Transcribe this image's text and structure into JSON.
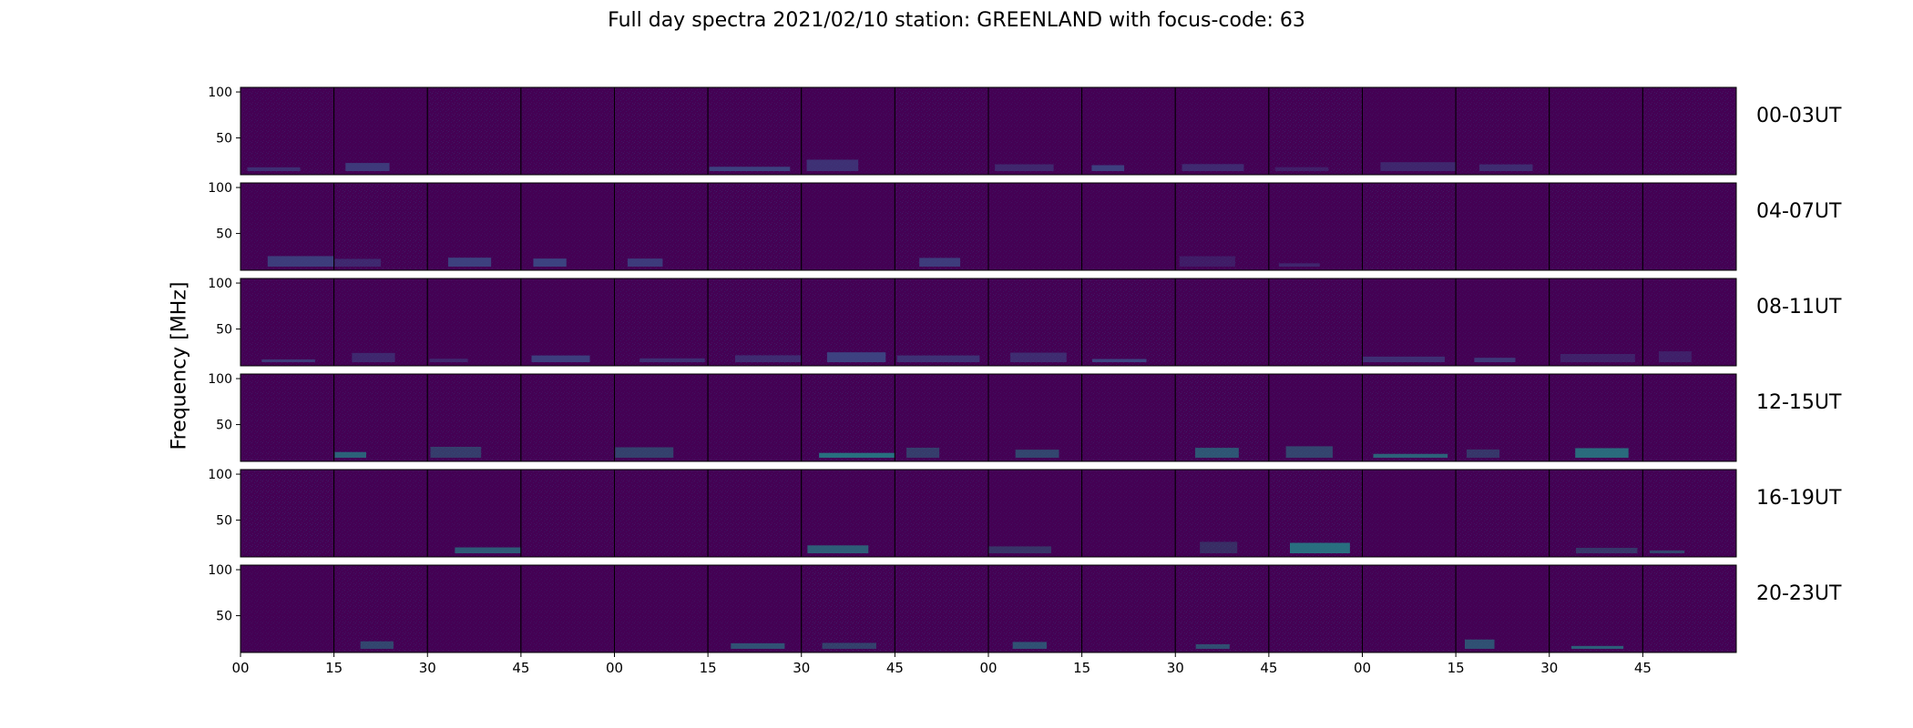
{
  "title": "Full day spectra 2021/02/10 station: GREENLAND with focus-code: 63",
  "chart_data": {
    "type": "heatmap",
    "title": "Full day spectra 2021/02/10 station: GREENLAND with focus-code: 63",
    "xlabel": "",
    "ylabel": "Frequency [MHz]",
    "ylim": [
      10,
      105
    ],
    "yticks": [
      "100",
      "50"
    ],
    "xticks": [
      "00",
      "15",
      "30",
      "45",
      "00",
      "15",
      "30",
      "45",
      "00",
      "15",
      "30",
      "45",
      "00",
      "15",
      "30",
      "45"
    ],
    "row_labels": [
      "00-03UT",
      "04-07UT",
      "08-11UT",
      "12-15UT",
      "16-19UT",
      "20-23UT"
    ],
    "panels_per_row": 16,
    "colormap": [
      "#440154",
      "#3b528b",
      "#21918c",
      "#5ec962",
      "#fde725"
    ],
    "grid": false
  }
}
